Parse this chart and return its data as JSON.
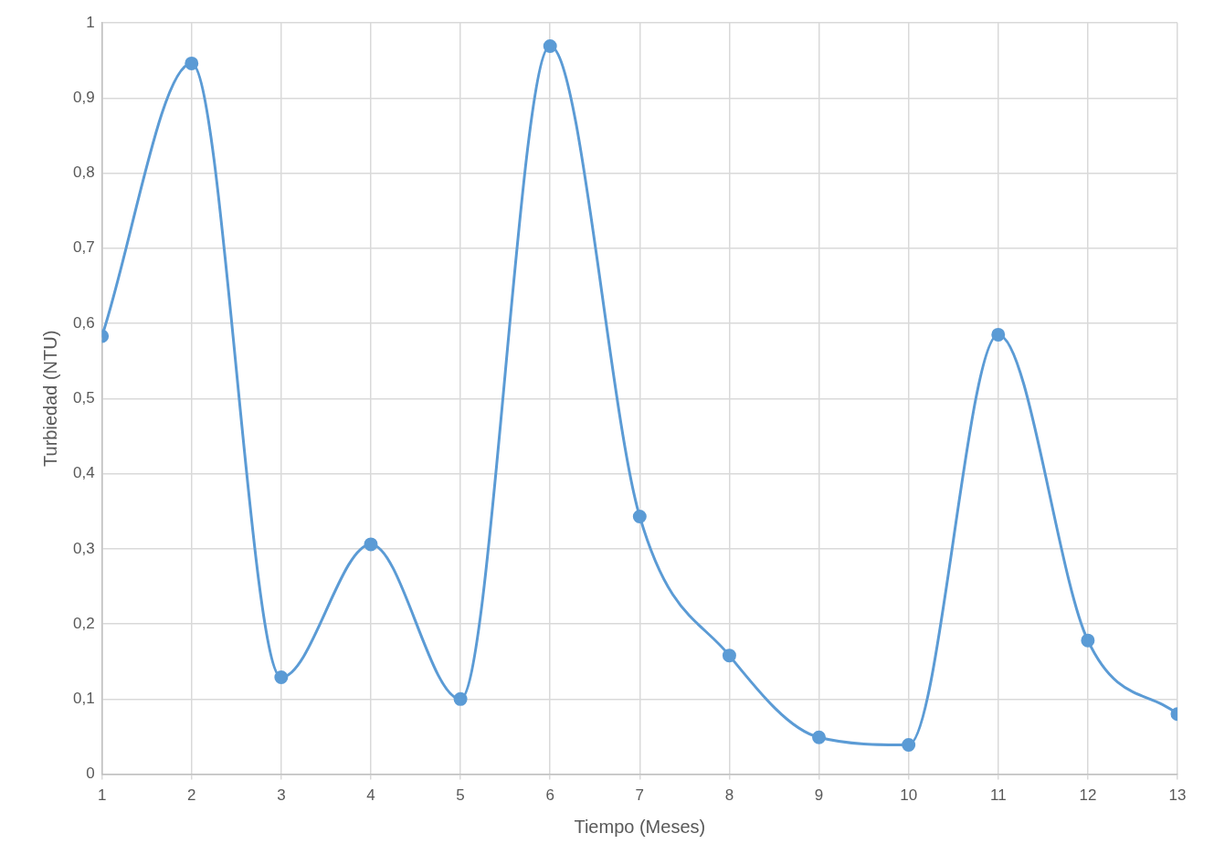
{
  "chart_data": {
    "type": "line",
    "xlabel": "Tiempo (Meses)",
    "ylabel": "Turbiedad (NTU)",
    "x": [
      1,
      2,
      3,
      4,
      5,
      6,
      7,
      8,
      9,
      10,
      11,
      12,
      13
    ],
    "series": [
      {
        "color": "#5b9bd5",
        "values": [
          0.583,
          0.946,
          0.129,
          0.306,
          0.1,
          0.969,
          0.343,
          0.158,
          0.049,
          0.039,
          0.585,
          0.178,
          0.08
        ]
      }
    ],
    "xlim": [
      1,
      13
    ],
    "xticks": [
      1,
      2,
      3,
      4,
      5,
      6,
      7,
      8,
      9,
      10,
      11,
      12,
      13
    ],
    "ylim": [
      0,
      1
    ],
    "yticks": [
      {
        "value": 0,
        "label": "0"
      },
      {
        "value": 0.1,
        "label": "0,1"
      },
      {
        "value": 0.2,
        "label": "0,2"
      },
      {
        "value": 0.3,
        "label": "0,3"
      },
      {
        "value": 0.4,
        "label": "0,4"
      },
      {
        "value": 0.5,
        "label": "0,5"
      },
      {
        "value": 0.6,
        "label": "0,6"
      },
      {
        "value": 0.7,
        "label": "0,7"
      },
      {
        "value": 0.8,
        "label": "0,8"
      },
      {
        "value": 0.9,
        "label": "0,9"
      },
      {
        "value": 1,
        "label": "1"
      }
    ],
    "grid": true,
    "marker": "circle",
    "line_style": "solid",
    "legend": false
  }
}
